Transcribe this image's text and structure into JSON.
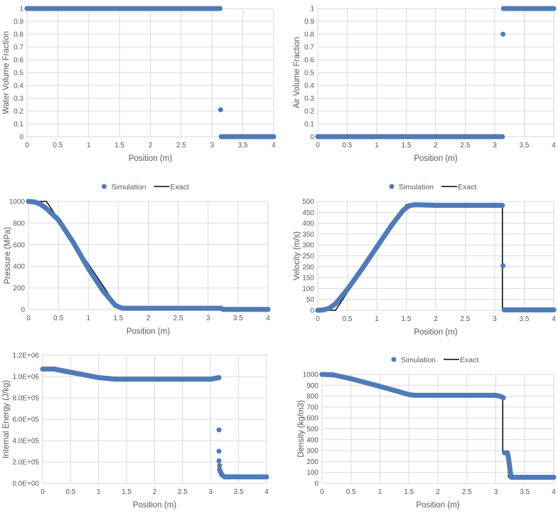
{
  "colors": {
    "simulation": "#4f7bb8",
    "exact": "#000000",
    "grid": "#d9d9d9",
    "text": "#595959"
  },
  "chart_data": [
    {
      "id": "water",
      "type": "scatter",
      "xlabel": "Position (m)",
      "ylabel": "Water Volume Fraction",
      "xlim": [
        0,
        4
      ],
      "xstep": 0.5,
      "ylim": [
        0,
        1
      ],
      "ystep": 0.1,
      "yformat": "plain",
      "legend": null,
      "series": [
        {
          "name": "Simulation",
          "segments": [
            [
              [
                0,
                1
              ],
              [
                3.13,
                1
              ]
            ],
            [
              [
                3.15,
                0
              ],
              [
                4,
                0
              ]
            ]
          ],
          "points": [
            [
              3.14,
              0.21
            ]
          ]
        }
      ]
    },
    {
      "id": "air",
      "type": "scatter",
      "xlabel": "Position (m)",
      "ylabel": "Air Volume Fraction",
      "xlim": [
        0,
        4
      ],
      "xstep": 0.5,
      "ylim": [
        0,
        1
      ],
      "ystep": 0.1,
      "yformat": "plain",
      "legend": null,
      "series": [
        {
          "name": "Simulation",
          "segments": [
            [
              [
                0,
                0
              ],
              [
                3.13,
                0
              ]
            ],
            [
              [
                3.15,
                1
              ],
              [
                4,
                1
              ]
            ]
          ],
          "points": [
            [
              3.14,
              0.8
            ]
          ]
        }
      ]
    },
    {
      "id": "pressure",
      "type": "scatter",
      "xlabel": "Position (m)",
      "ylabel": "Pressure  (MPa)",
      "xlim": [
        0,
        4
      ],
      "xstep": 0.5,
      "ylim": [
        0,
        1000
      ],
      "ystep": 200,
      "yformat": "plain",
      "legend": {
        "simulation": "Simulation",
        "exact": "Exact",
        "placement": "top"
      },
      "series": [
        {
          "name": "Simulation",
          "segments": [
            [
              [
                0,
                1000
              ],
              [
                0.1,
                995
              ],
              [
                0.2,
                975
              ],
              [
                0.3,
                935
              ],
              [
                0.5,
                830
              ],
              [
                0.75,
                620
              ],
              [
                1,
                380
              ],
              [
                1.25,
                170
              ],
              [
                1.45,
                40
              ],
              [
                1.55,
                15
              ],
              [
                1.6,
                12
              ],
              [
                3.22,
                12
              ]
            ],
            [
              [
                3.25,
                2
              ],
              [
                4,
                2
              ]
            ]
          ],
          "points": []
        },
        {
          "name": "Exact",
          "line": [
            [
              0,
              1000
            ],
            [
              0.3,
              1000
            ],
            [
              1.5,
              10
            ],
            [
              3.22,
              10
            ],
            [
              3.22,
              0
            ],
            [
              4,
              0
            ]
          ]
        }
      ]
    },
    {
      "id": "velocity",
      "type": "scatter",
      "xlabel": "Position (m)",
      "ylabel": "Velocity (m/s)",
      "xlim": [
        0,
        4
      ],
      "xstep": 0.5,
      "ylim": [
        0,
        500
      ],
      "ystep": 50,
      "yformat": "plain",
      "legend": {
        "simulation": "Simulation",
        "exact": "Exact",
        "placement": "top"
      },
      "series": [
        {
          "name": "Simulation",
          "segments": [
            [
              [
                0,
                0
              ],
              [
                0.1,
                2
              ],
              [
                0.2,
                10
              ],
              [
                0.3,
                30
              ],
              [
                0.5,
                95
              ],
              [
                0.75,
                190
              ],
              [
                1,
                290
              ],
              [
                1.25,
                390
              ],
              [
                1.45,
                460
              ],
              [
                1.55,
                480
              ],
              [
                1.65,
                485
              ],
              [
                2,
                482
              ],
              [
                3.13,
                482
              ]
            ],
            [
              [
                3.16,
                2
              ],
              [
                4,
                2
              ]
            ]
          ],
          "points": [
            [
              3.14,
              205
            ]
          ]
        },
        {
          "name": "Exact",
          "line": [
            [
              0,
              0
            ],
            [
              0.3,
              0
            ],
            [
              1.5,
              485
            ],
            [
              3.13,
              482
            ],
            [
              3.13,
              0
            ],
            [
              4,
              0
            ]
          ]
        }
      ]
    },
    {
      "id": "energy",
      "type": "scatter",
      "xlabel": "Position (m)",
      "ylabel": "Internal Energy (J/kg)",
      "xlim": [
        0,
        4
      ],
      "xstep": 0.5,
      "ylim": [
        0,
        1200000
      ],
      "ystep": 200000,
      "yformat": "sci",
      "legend": null,
      "series": [
        {
          "name": "Simulation",
          "segments": [
            [
              [
                0,
                1070000
              ],
              [
                0.2,
                1070000
              ],
              [
                0.5,
                1040000
              ],
              [
                1,
                990000
              ],
              [
                1.3,
                975000
              ],
              [
                3,
                975000
              ],
              [
                3.1,
                985000
              ],
              [
                3.15,
                990000
              ]
            ],
            [
              [
                3.16,
                130000
              ],
              [
                3.2,
                80000
              ],
              [
                3.25,
                60000
              ],
              [
                4,
                60000
              ]
            ]
          ],
          "points": [
            [
              3.15,
              500000
            ],
            [
              3.15,
              300000
            ],
            [
              3.15,
              210000
            ],
            [
              3.16,
              165000
            ]
          ]
        }
      ]
    },
    {
      "id": "density",
      "type": "scatter",
      "xlabel": "Position (m)",
      "ylabel": "Density (kg/m3)",
      "xlim": [
        0,
        4
      ],
      "xstep": 0.5,
      "ylim": [
        0,
        1000
      ],
      "ystep": 100,
      "yformat": "plain",
      "legend": {
        "simulation": "Simulation",
        "exact": "Exact",
        "placement": "top"
      },
      "series": [
        {
          "name": "Simulation",
          "segments": [
            [
              [
                0,
                1000
              ],
              [
                0.2,
                995
              ],
              [
                0.5,
                960
              ],
              [
                1,
                890
              ],
              [
                1.5,
                815
              ],
              [
                1.6,
                808
              ],
              [
                3,
                808
              ],
              [
                3.1,
                795
              ],
              [
                3.13,
                785
              ]
            ],
            [
              [
                3.15,
                280
              ],
              [
                3.2,
                280
              ],
              [
                3.22,
                230
              ],
              [
                3.24,
                150
              ],
              [
                3.25,
                100
              ],
              [
                3.27,
                55
              ],
              [
                4,
                55
              ]
            ]
          ],
          "points": []
        },
        {
          "name": "Exact",
          "line": [
            [
              0,
              1000
            ],
            [
              0.25,
              1000
            ],
            [
              1.55,
              808
            ],
            [
              3.12,
              790
            ],
            [
              3.12,
              280
            ],
            [
              3.22,
              280
            ],
            [
              3.22,
              55
            ],
            [
              4,
              55
            ]
          ]
        }
      ]
    }
  ]
}
